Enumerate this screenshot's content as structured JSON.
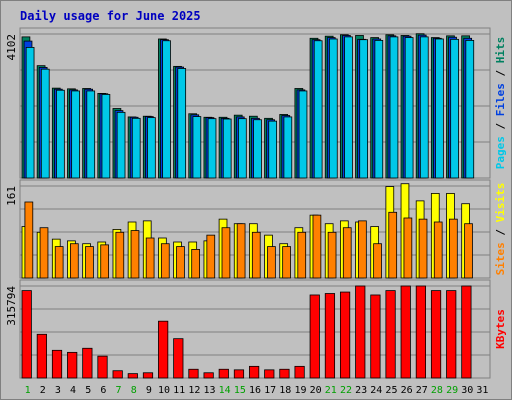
{
  "chart_data": {
    "type": "bar",
    "title": "Daily usage for June 2025",
    "categories": [
      "1",
      "2",
      "3",
      "4",
      "5",
      "6",
      "7",
      "8",
      "9",
      "10",
      "11",
      "12",
      "13",
      "14",
      "15",
      "16",
      "17",
      "18",
      "19",
      "20",
      "21",
      "22",
      "23",
      "24",
      "25",
      "26",
      "27",
      "28",
      "29",
      "30",
      "31"
    ],
    "weekend_days": [
      "1",
      "7",
      "8",
      "14",
      "15",
      "21",
      "22",
      "28",
      "29"
    ],
    "panels": [
      {
        "id": "hits",
        "scale_label": "4102",
        "max": 4102,
        "ylabel_parts": [
          {
            "text": "Pages",
            "color": "#00c8e8"
          },
          {
            "text": " / ",
            "color": "#000000"
          },
          {
            "text": "Files",
            "color": "#0040e0"
          },
          {
            "text": " / ",
            "color": "#000000"
          },
          {
            "text": "Hits",
            "color": "#008060"
          }
        ],
        "series": [
          {
            "name": "Hits",
            "color": "#008060",
            "values": [
              4020,
              3200,
              2560,
              2540,
              2550,
              2410,
              1980,
              1740,
              1760,
              3960,
              3180,
              1830,
              1730,
              1730,
              1790,
              1760,
              1700,
              1810,
              2550,
              3980,
              4040,
              4080,
              4060,
              4000,
              4080,
              4060,
              4110,
              4000,
              4050,
              4050,
              null
            ]
          },
          {
            "name": "Files",
            "color": "#0040e0",
            "values": [
              3900,
              3150,
              2530,
              2510,
              2530,
              2400,
              1920,
              1730,
              1750,
              3940,
              3160,
              1800,
              1720,
              1700,
              1740,
              1700,
              1660,
              1780,
              2510,
              3940,
              4000,
              4060,
              3950,
              3960,
              4050,
              4040,
              4070,
              3980,
              4010,
              3980,
              null
            ]
          },
          {
            "name": "Pages",
            "color": "#00c8e8",
            "values": [
              3720,
              3100,
              2500,
              2480,
              2480,
              2380,
              1870,
              1700,
              1720,
              3910,
              3120,
              1750,
              1690,
              1680,
              1690,
              1660,
              1620,
              1740,
              2480,
              3910,
              3960,
              4020,
              3940,
              3920,
              4020,
              4000,
              4020,
              3960,
              3950,
              3920,
              null
            ]
          }
        ]
      },
      {
        "id": "visits",
        "scale_label": "161",
        "max": 161,
        "ylabel_parts": [
          {
            "text": "Sites",
            "color": "#ff8000"
          },
          {
            "text": " / ",
            "color": "#000000"
          },
          {
            "text": "Visits",
            "color": "#ffff00"
          }
        ],
        "series": [
          {
            "name": "Visits",
            "color": "#ffff00",
            "values": [
              90,
              80,
              68,
              65,
              60,
              63,
              85,
              98,
              100,
              70,
              63,
              63,
              65,
              103,
              95,
              95,
              75,
              60,
              88,
              110,
              95,
              100,
              98,
              90,
              160,
              165,
              135,
              148,
              148,
              130,
              null
            ]
          },
          {
            "name": "Sites",
            "color": "#ff8000",
            "values": [
              133,
              88,
              55,
              60,
              55,
              58,
              80,
              83,
              70,
              60,
              55,
              50,
              75,
              88,
              95,
              80,
              55,
              55,
              80,
              110,
              80,
              88,
              100,
              60,
              115,
              105,
              103,
              98,
              103,
              95,
              null
            ]
          }
        ]
      },
      {
        "id": "kbytes",
        "scale_label": "315794",
        "max": 315794,
        "ylabel_parts": [
          {
            "text": "KBytes",
            "color": "#ff0000"
          }
        ],
        "series": [
          {
            "name": "KBytes",
            "color": "#ff0000",
            "values": [
              300000,
              150000,
              95000,
              88000,
              102000,
              75000,
              25000,
              15000,
              18000,
              195000,
              135000,
              30000,
              18000,
              30000,
              28000,
              40000,
              28000,
              30000,
              40000,
              285000,
              290000,
              295000,
              315794,
              285000,
              300000,
              315794,
              315794,
              300000,
              300000,
              315794,
              null
            ]
          }
        ]
      }
    ]
  }
}
